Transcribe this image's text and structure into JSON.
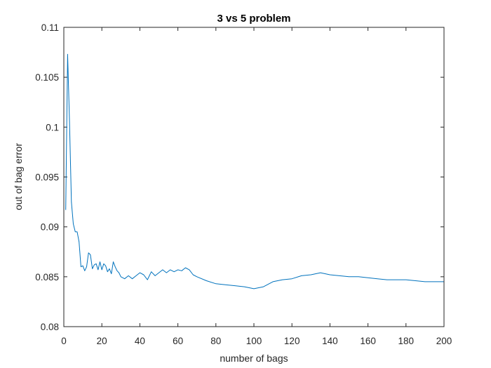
{
  "chart_data": {
    "type": "line",
    "title": "3 vs 5 problem",
    "xlabel": "number of bags",
    "ylabel": "out of bag error",
    "xlim": [
      0,
      200
    ],
    "ylim": [
      0.08,
      0.11
    ],
    "xticks": [
      0,
      20,
      40,
      60,
      80,
      100,
      120,
      140,
      160,
      180,
      200
    ],
    "xtick_labels": [
      "0",
      "20",
      "40",
      "60",
      "80",
      "100",
      "120",
      "140",
      "160",
      "180",
      "200"
    ],
    "yticks": [
      0.08,
      0.085,
      0.09,
      0.095,
      0.1,
      0.105,
      0.11
    ],
    "ytick_labels": [
      "0.08",
      "0.085",
      "0.09",
      "0.095",
      "0.1",
      "0.105",
      "0.11"
    ],
    "grid": false,
    "line_color": "#0072bd",
    "series": [
      {
        "x": [
          1,
          2,
          3,
          4,
          5,
          6,
          7,
          8,
          9,
          10,
          11,
          12,
          13,
          14,
          15,
          16,
          17,
          18,
          19,
          20,
          21,
          22,
          23,
          24,
          25,
          26,
          27,
          28,
          29,
          30,
          32,
          34,
          36,
          38,
          40,
          42,
          44,
          46,
          48,
          50,
          52,
          54,
          56,
          58,
          60,
          62,
          64,
          66,
          68,
          70,
          75,
          80,
          85,
          90,
          95,
          100,
          105,
          110,
          115,
          120,
          125,
          130,
          135,
          140,
          145,
          150,
          155,
          160,
          165,
          170,
          175,
          180,
          185,
          190,
          195,
          200
        ],
        "y": [
          0.0917,
          0.1073,
          0.1005,
          0.0925,
          0.0903,
          0.0895,
          0.0895,
          0.0885,
          0.086,
          0.0861,
          0.0856,
          0.086,
          0.0874,
          0.0872,
          0.0858,
          0.0862,
          0.0863,
          0.0857,
          0.0865,
          0.0857,
          0.0863,
          0.0861,
          0.0855,
          0.0858,
          0.0853,
          0.0865,
          0.086,
          0.0856,
          0.0854,
          0.085,
          0.0848,
          0.0851,
          0.0848,
          0.0851,
          0.0854,
          0.0852,
          0.0847,
          0.0855,
          0.0851,
          0.0854,
          0.0857,
          0.0854,
          0.0857,
          0.0855,
          0.0857,
          0.0856,
          0.0859,
          0.0857,
          0.0852,
          0.085,
          0.0846,
          0.0843,
          0.0842,
          0.0841,
          0.084,
          0.0838,
          0.084,
          0.0845,
          0.0847,
          0.0848,
          0.0851,
          0.0852,
          0.0854,
          0.0852,
          0.0851,
          0.085,
          0.085,
          0.0849,
          0.0848,
          0.0847,
          0.0847,
          0.0847,
          0.0846,
          0.0845,
          0.0845,
          0.0845
        ]
      }
    ]
  }
}
